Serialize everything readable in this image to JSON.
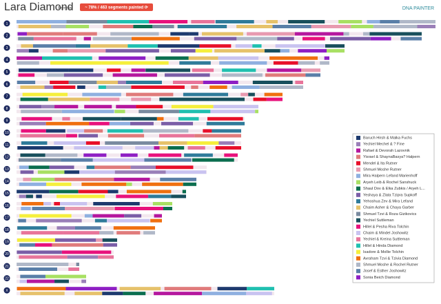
{
  "header": {
    "title": "Lara Diamond",
    "gender": "Female",
    "badge": "~ 78% / 463 segments painted ⟳",
    "brand": "DNA PAINTER"
  },
  "chromosomes": [
    "1",
    "2",
    "3",
    "4",
    "5",
    "6",
    "7",
    "8",
    "9",
    "10",
    "11",
    "12",
    "13",
    "14",
    "15",
    "16",
    "17",
    "18",
    "19",
    "20",
    "21",
    "22",
    "X"
  ],
  "legend": [
    {
      "name": "Baruch Hirsh & Malka Fuchs",
      "color": "#1d3a6e"
    },
    {
      "name": "Yechiel Mechel & ? Fine",
      "color": "#9a7fb8"
    },
    {
      "name": "Rafael & Devorah Lazovnik",
      "color": "#b5179e"
    },
    {
      "name": "Yisrael & ShaynaBasya? Halpern",
      "color": "#e07b7b"
    },
    {
      "name": "Mendel & Ita Rutner",
      "color": "#e8102a"
    },
    {
      "name": "Shmuel Moshe Rutner",
      "color": "#e89ab0"
    },
    {
      "name": "Mira Halpern Lefand Marienhoff",
      "color": "#8fb0e0"
    },
    {
      "name": "Aryeh Leib & Rochel Sanshuck",
      "color": "#a8e063"
    },
    {
      "name": "Shaul Dov & Elka Zubkis / Aryeh L...",
      "color": "#0b6e4f"
    },
    {
      "name": "Yeshaya & Zlata Tzipra Supkoff",
      "color": "#7b5ea7"
    },
    {
      "name": "Yehoshua Zev & Mira Lefand",
      "color": "#2f7b9a"
    },
    {
      "name": "Chaim Asher & Chaya Garber",
      "color": "#e6c26b"
    },
    {
      "name": "Shmuel Tzvi & Roza Gizikovics",
      "color": "#7a8ba0"
    },
    {
      "name": "Yechiel Suttleman",
      "color": "#184f5c"
    },
    {
      "name": "Hillel & Pesha Riva Tolchin",
      "color": "#e8127c"
    },
    {
      "name": "Chaim & Mindel Joshowitz",
      "color": "#c9c3f0"
    },
    {
      "name": "Yechiel & Kreina Suttleman",
      "color": "#e8749a"
    },
    {
      "name": "Hillel & Hinda Diamond",
      "color": "#20c0b0"
    },
    {
      "name": "Isadore & Mollie Tolchin",
      "color": "#f5ef3c"
    },
    {
      "name": "Avraham Tzvi & Tzivia Diamond",
      "color": "#f07010"
    },
    {
      "name": "Shmuel Moshe & Rochel Rutner",
      "color": "#b0b8c8"
    },
    {
      "name": "Josef & Esther Joshowitz",
      "color": "#5a7fa8"
    },
    {
      "name": "Sonia Beich Diamond",
      "color": "#8e1fc4"
    }
  ]
}
